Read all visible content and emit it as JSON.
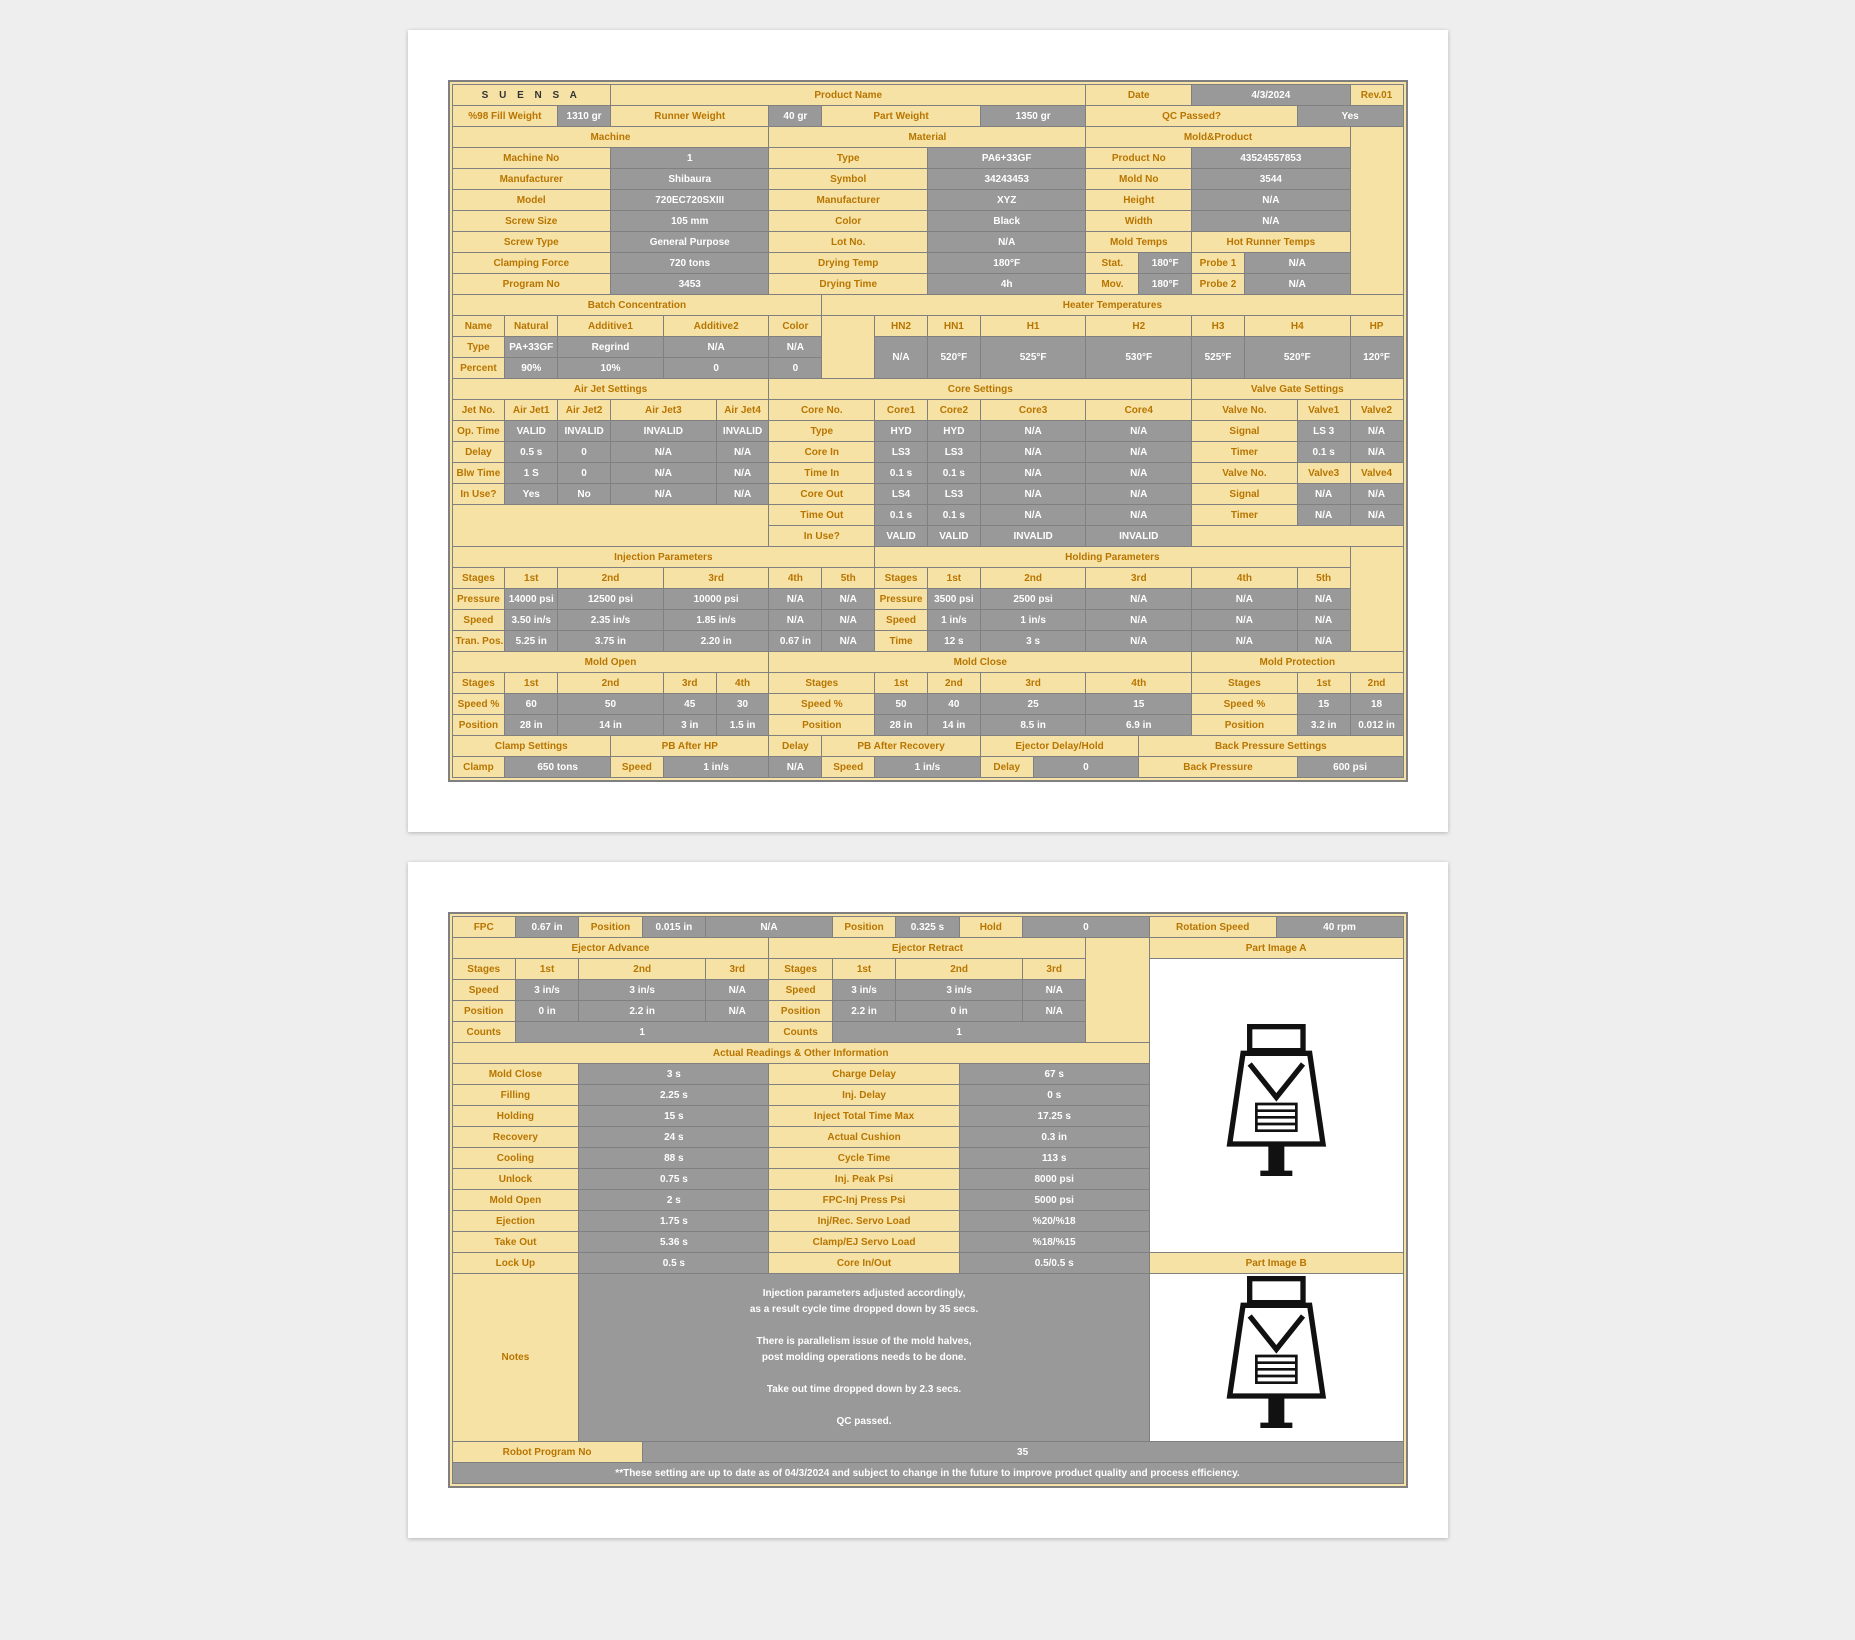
{
  "logo": "S U E N S A",
  "header": {
    "productNameLabel": "Product Name",
    "dateLabel": "Date",
    "date": "4/3/2024",
    "rev": "Rev.01",
    "fillWeightLabel": "%98 Fill Weight",
    "fillWeight": "1310 gr",
    "runnerWeightLabel": "Runner Weight",
    "runnerWeight": "40 gr",
    "partWeightLabel": "Part Weight",
    "partWeight": "1350 gr",
    "qcLabel": "QC Passed?",
    "qc": "Yes"
  },
  "machine": {
    "section": "Machine",
    "items": [
      [
        "Machine No",
        "1"
      ],
      [
        "Manufacturer",
        "Shibaura"
      ],
      [
        "Model",
        "720EC720SXIII"
      ],
      [
        "Screw Size",
        "105 mm"
      ],
      [
        "Screw Type",
        "General Purpose"
      ],
      [
        "Clamping Force",
        "720 tons"
      ],
      [
        "Program No",
        "3453"
      ]
    ]
  },
  "material": {
    "section": "Material",
    "items": [
      [
        "Type",
        "PA6+33GF"
      ],
      [
        "Symbol",
        "34243453"
      ],
      [
        "Manufacturer",
        "XYZ"
      ],
      [
        "Color",
        "Black"
      ],
      [
        "Lot No.",
        "N/A"
      ],
      [
        "Drying Temp",
        "180°F"
      ],
      [
        "Drying Time",
        "4h"
      ]
    ]
  },
  "mold": {
    "section": "Mold&Product",
    "productNoLabel": "Product No",
    "productNo": "43524557853",
    "moldNoLabel": "Mold No",
    "moldNo": "3544",
    "heightLabel": "Height",
    "height": "N/A",
    "widthLabel": "Width",
    "width": "N/A",
    "moldTempsLabel": "Mold Temps",
    "hotRunnerLabel": "Hot Runner Temps",
    "statLabel": "Stat.",
    "stat": "180°F",
    "probe1Label": "Probe 1",
    "probe1": "N/A",
    "movLabel": "Mov.",
    "mov": "180°F",
    "probe2Label": "Probe 2",
    "probe2": "N/A"
  },
  "batch": {
    "section": "Batch Concentration",
    "cols": [
      "Name",
      "Natural",
      "Additive1",
      "Additive2",
      "Color"
    ],
    "typeLabel": "Type",
    "types": [
      "PA+33GF",
      "Regrind",
      "N/A",
      "N/A"
    ],
    "pctLabel": "Percent",
    "pcts": [
      "90%",
      "10%",
      "0",
      "0"
    ]
  },
  "heater": {
    "section": "Heater Temperatures",
    "cols": [
      "HN2",
      "HN1",
      "H1",
      "H2",
      "H3",
      "H4",
      "HP"
    ],
    "vals": [
      "N/A",
      "520°F",
      "525°F",
      "530°F",
      "525°F",
      "520°F",
      "120°F"
    ]
  },
  "airjet": {
    "section": "Air Jet Settings",
    "cols": [
      "Jet No.",
      "Air Jet1",
      "Air Jet2",
      "Air Jet3",
      "Air Jet4"
    ],
    "rows": [
      [
        "Op. Time",
        "VALID",
        "INVALID",
        "INVALID",
        "INVALID"
      ],
      [
        "Delay",
        "0.5 s",
        "0",
        "N/A",
        "N/A"
      ],
      [
        "Blw Time",
        "1 S",
        "0",
        "N/A",
        "N/A"
      ],
      [
        "In Use?",
        "Yes",
        "No",
        "N/A",
        "N/A"
      ]
    ]
  },
  "core": {
    "section": "Core Settings",
    "cols": [
      "Core No.",
      "Core1",
      "Core2",
      "Core3",
      "Core4"
    ],
    "rows": [
      [
        "Type",
        "HYD",
        "HYD",
        "N/A",
        "N/A"
      ],
      [
        "Core In",
        "LS3",
        "LS3",
        "N/A",
        "N/A"
      ],
      [
        "Time In",
        "0.1 s",
        "0.1 s",
        "N/A",
        "N/A"
      ],
      [
        "Core Out",
        "LS4",
        "LS3",
        "N/A",
        "N/A"
      ],
      [
        "Time Out",
        "0.1 s",
        "0.1 s",
        "N/A",
        "N/A"
      ],
      [
        "In Use?",
        "VALID",
        "VALID",
        "INVALID",
        "INVALID"
      ]
    ]
  },
  "valve": {
    "section": "Valve Gate Settings",
    "rows": [
      [
        "Valve No.",
        "Valve1",
        "Valve2"
      ],
      [
        "Signal",
        "LS 3",
        "N/A"
      ],
      [
        "Timer",
        "0.1 s",
        "N/A"
      ],
      [
        "Valve No.",
        "Valve3",
        "Valve4"
      ],
      [
        "Signal",
        "N/A",
        "N/A"
      ],
      [
        "Timer",
        "N/A",
        "N/A"
      ]
    ]
  },
  "inj": {
    "section": "Injection Parameters",
    "cols": [
      "Stages",
      "1st",
      "2nd",
      "3rd",
      "4th",
      "5th"
    ],
    "rows": [
      [
        "Pressure",
        "14000 psi",
        "12500 psi",
        "10000 psi",
        "N/A",
        "N/A"
      ],
      [
        "Speed",
        "3.50 in/s",
        "2.35 in/s",
        "1.85 in/s",
        "N/A",
        "N/A"
      ],
      [
        "Tran. Pos.",
        "5.25 in",
        "3.75 in",
        "2.20 in",
        "0.67 in",
        "N/A"
      ]
    ]
  },
  "hold": {
    "section": "Holding Parameters",
    "cols": [
      "Stages",
      "1st",
      "2nd",
      "3rd",
      "4th",
      "5th"
    ],
    "rows": [
      [
        "Pressure",
        "3500 psi",
        "2500 psi",
        "N/A",
        "N/A",
        "N/A"
      ],
      [
        "Speed",
        "1 in/s",
        "1 in/s",
        "N/A",
        "N/A",
        "N/A"
      ],
      [
        "Time",
        "12 s",
        "3 s",
        "N/A",
        "N/A",
        "N/A"
      ]
    ]
  },
  "moldOpen": {
    "section": "Mold Open",
    "cols": [
      "Stages",
      "1st",
      "2nd",
      "3rd",
      "4th"
    ],
    "rows": [
      [
        "Speed %",
        "60",
        "50",
        "45",
        "30"
      ],
      [
        "Position",
        "28 in",
        "14 in",
        "3 in",
        "1.5 in"
      ]
    ]
  },
  "moldClose": {
    "section": "Mold Close",
    "cols": [
      "Stages",
      "1st",
      "2nd",
      "3rd",
      "4th"
    ],
    "rows": [
      [
        "Speed %",
        "50",
        "40",
        "25",
        "15"
      ],
      [
        "Position",
        "28 in",
        "14 in",
        "8.5 in",
        "6.9 in"
      ]
    ]
  },
  "moldProt": {
    "section": "Mold Protection",
    "cols": [
      "Stages",
      "1st",
      "2nd"
    ],
    "rows": [
      [
        "Speed %",
        "15",
        "18"
      ],
      [
        "Position",
        "3.2 in",
        "0.012 in"
      ]
    ]
  },
  "bottom1": {
    "clampSettings": "Clamp Settings",
    "clampLabel": "Clamp",
    "clamp": "650 tons",
    "pbAfterHP": "PB After HP",
    "speedLabel": "Speed",
    "speed": "1 in/s",
    "delayLabel": "Delay",
    "delay": "N/A",
    "pbAfterRec": "PB After Recovery",
    "speed2": "1 in/s",
    "ejDelay": "Ejector Delay/Hold",
    "delay2Label": "Delay",
    "delay2": "0",
    "bpSettings": "Back Pressure Settings",
    "bpLabel": "Back Pressure",
    "bp": "600 psi"
  },
  "page2": {
    "fpc": {
      "label": "FPC",
      "v1": "0.67 in",
      "posLabel": "Position",
      "pos": "0.015 in",
      "na": "N/A",
      "pos2Label": "Position",
      "pos2": "0.325 s",
      "holdLabel": "Hold",
      "hold": "0",
      "rotLabel": "Rotation Speed",
      "rot": "40 rpm"
    },
    "ejAdv": {
      "section": "Ejector Advance",
      "cols": [
        "Stages",
        "1st",
        "2nd",
        "3rd"
      ],
      "rows": [
        [
          "Speed",
          "3 in/s",
          "3 in/s",
          "N/A"
        ],
        [
          "Position",
          "0 in",
          "2.2 in",
          "N/A"
        ]
      ],
      "countsLabel": "Counts",
      "counts": "1"
    },
    "ejRet": {
      "section": "Ejector Retract",
      "cols": [
        "Stages",
        "1st",
        "2nd",
        "3rd"
      ],
      "rows": [
        [
          "Speed",
          "3 in/s",
          "3 in/s",
          "N/A"
        ],
        [
          "Position",
          "2.2 in",
          "0 in",
          "N/A"
        ]
      ],
      "countsLabel": "Counts",
      "counts": "1"
    },
    "partA": "Part Image A",
    "partB": "Part Image B",
    "actual": {
      "section": "Actual  Readings & Other Information",
      "rows": [
        [
          "Mold Close",
          "3 s",
          "Charge Delay",
          "67 s"
        ],
        [
          "Filling",
          "2.25 s",
          "Inj. Delay",
          "0 s"
        ],
        [
          "Holding",
          "15 s",
          "Inject Total Time Max",
          "17.25 s"
        ],
        [
          "Recovery",
          "24 s",
          "Actual Cushion",
          "0.3 in"
        ],
        [
          "Cooling",
          "88 s",
          "Cycle Time",
          "113 s"
        ],
        [
          "Unlock",
          "0.75 s",
          "Inj. Peak Psi",
          "8000 psi"
        ],
        [
          "Mold Open",
          "2 s",
          "FPC-Inj Press Psi",
          "5000 psi"
        ],
        [
          "Ejection",
          "1.75 s",
          "Inj/Rec. Servo Load",
          "%20/%18"
        ],
        [
          "Take Out",
          "5.36 s",
          "Clamp/EJ Servo Load",
          "%18/%15"
        ],
        [
          "Lock Up",
          "0.5 s",
          "Core In/Out",
          "0.5/0.5 s"
        ]
      ]
    },
    "notesLabel": "Notes",
    "notes": "Injection parameters adjusted accordingly,<br>as a result cycle time dropped down by 35 secs.<br><br>There is parallelism issue of the mold halves,<br>post molding operations needs to be done.<br><br>Take out time dropped down by 2.3 secs.<br><br>QC passed.",
    "robotLabel": "Robot Program No",
    "robot": "35",
    "footer": "**These setting are up to date as of 04/3/2024 and subject to change in the future to improve product quality and process efficiency."
  }
}
